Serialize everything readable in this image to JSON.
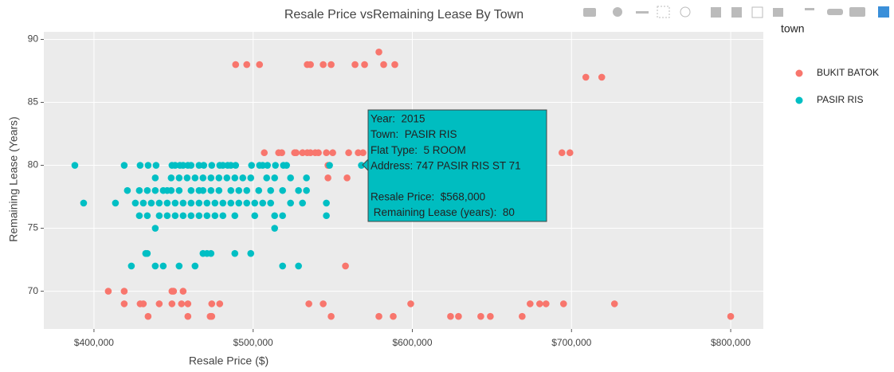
{
  "chart_data": {
    "type": "scatter",
    "title": "Resale Price vsRemaining Lease By Town",
    "x_label": "Resale Price ($)",
    "y_label": "Remaining Lease (Years)",
    "legend_title": "town",
    "legend_position": "right",
    "grid": true,
    "xlim": [
      368500,
      820500
    ],
    "ylim": [
      67,
      90.6
    ],
    "xticks": [
      {
        "value": 400000,
        "label": "$400,000"
      },
      {
        "value": 500000,
        "label": "$500,000"
      },
      {
        "value": 600000,
        "label": "$600,000"
      },
      {
        "value": 700000,
        "label": "$700,000"
      },
      {
        "value": 800000,
        "label": "$800,000"
      }
    ],
    "yticks": [
      70,
      75,
      80,
      85,
      90
    ],
    "series": [
      {
        "name": "BUKIT BATOK",
        "color": "#f8766d",
        "x": [
          489000,
          496000,
          504000,
          534000,
          536000,
          544000,
          549000,
          564000,
          570000,
          582000,
          589000,
          579000,
          709000,
          719000,
          507000,
          516000,
          518000,
          526000,
          527000,
          531000,
          534000,
          536000,
          539000,
          541000,
          546000,
          550000,
          560000,
          566000,
          569000,
          694000,
          699000,
          547000,
          547000,
          559000,
          558000,
          409000,
          419000,
          449000,
          450000,
          456000,
          419000,
          429000,
          431000,
          441000,
          449000,
          455000,
          459000,
          474000,
          479000,
          535000,
          544000,
          599000,
          674000,
          680000,
          684000,
          695000,
          727000,
          434000,
          459000,
          473000,
          474000,
          549000,
          579000,
          588000,
          624000,
          629000,
          643000,
          649000,
          669000,
          800000
        ],
        "y": [
          88,
          88,
          88,
          88,
          88,
          88,
          88,
          88,
          88,
          88,
          88,
          89,
          87,
          87,
          81,
          81,
          81,
          81,
          81,
          81,
          81,
          81,
          81,
          81,
          81,
          81,
          81,
          81,
          81,
          81,
          81,
          80,
          79,
          79,
          72,
          70,
          70,
          70,
          70,
          70,
          69,
          69,
          69,
          69,
          69,
          69,
          69,
          69,
          69,
          69,
          69,
          69,
          69,
          69,
          69,
          69,
          69,
          68,
          68,
          68,
          68,
          68,
          68,
          68,
          68,
          68,
          68,
          68,
          68,
          68
        ]
      },
      {
        "name": "PASIR RIS",
        "color": "#00bfc4",
        "x": [
          388000,
          419000,
          429000,
          434000,
          439000,
          449000,
          451000,
          454000,
          456000,
          459000,
          461000,
          466000,
          469000,
          474000,
          479000,
          481000,
          484000,
          486000,
          489000,
          499000,
          504000,
          506000,
          509000,
          514000,
          519000,
          521000,
          548000,
          568000,
          438500,
          448500,
          453500,
          458500,
          463500,
          468500,
          473500,
          478500,
          483500,
          488500,
          493500,
          498500,
          508500,
          513500,
          523500,
          533500,
          421000,
          428500,
          433500,
          438500,
          443500,
          446000,
          448500,
          453500,
          461000,
          466000,
          468500,
          473500,
          478500,
          486000,
          491000,
          496000,
          503500,
          511000,
          518500,
          528500,
          533500,
          393500,
          413500,
          426000,
          431000,
          436000,
          441000,
          446000,
          451000,
          456000,
          461000,
          466000,
          471000,
          476000,
          481000,
          486000,
          491000,
          496000,
          501000,
          506000,
          511000,
          523500,
          531000,
          546000,
          428500,
          433500,
          441000,
          446000,
          451000,
          456000,
          461000,
          466000,
          471000,
          476000,
          481000,
          488500,
          501000,
          513500,
          518500,
          546000,
          513500,
          438500,
          432500,
          433500,
          468500,
          471000,
          473500,
          488500,
          498500,
          423500,
          438500,
          443500,
          453500,
          463500,
          518500,
          528500
        ],
        "y": [
          80,
          80,
          80,
          80,
          80,
          80,
          80,
          80,
          80,
          80,
          80,
          80,
          80,
          80,
          80,
          80,
          80,
          80,
          80,
          80,
          80,
          80,
          80,
          80,
          80,
          80,
          80,
          80,
          79,
          79,
          79,
          79,
          79,
          79,
          79,
          79,
          79,
          79,
          79,
          79,
          79,
          79,
          79,
          79,
          78,
          78,
          78,
          78,
          78,
          78,
          78,
          78,
          78,
          78,
          78,
          78,
          78,
          78,
          78,
          78,
          78,
          78,
          78,
          78,
          78,
          77,
          77,
          77,
          77,
          77,
          77,
          77,
          77,
          77,
          77,
          77,
          77,
          77,
          77,
          77,
          77,
          77,
          77,
          77,
          77,
          77,
          77,
          77,
          76,
          76,
          76,
          76,
          76,
          76,
          76,
          76,
          76,
          76,
          76,
          76,
          76,
          76,
          76,
          76,
          75,
          75,
          73,
          73,
          73,
          73,
          73,
          73,
          73,
          72,
          72,
          72,
          72,
          72,
          72,
          72
        ]
      }
    ],
    "tooltip": [
      "Year:  2015",
      "Town:  PASIR RIS",
      "Flat Type:  5 ROOM",
      "Address: 747 PASIR RIS ST 71",
      "Resale Price:  $568,000",
      " Remaining Lease (years):  80"
    ]
  }
}
